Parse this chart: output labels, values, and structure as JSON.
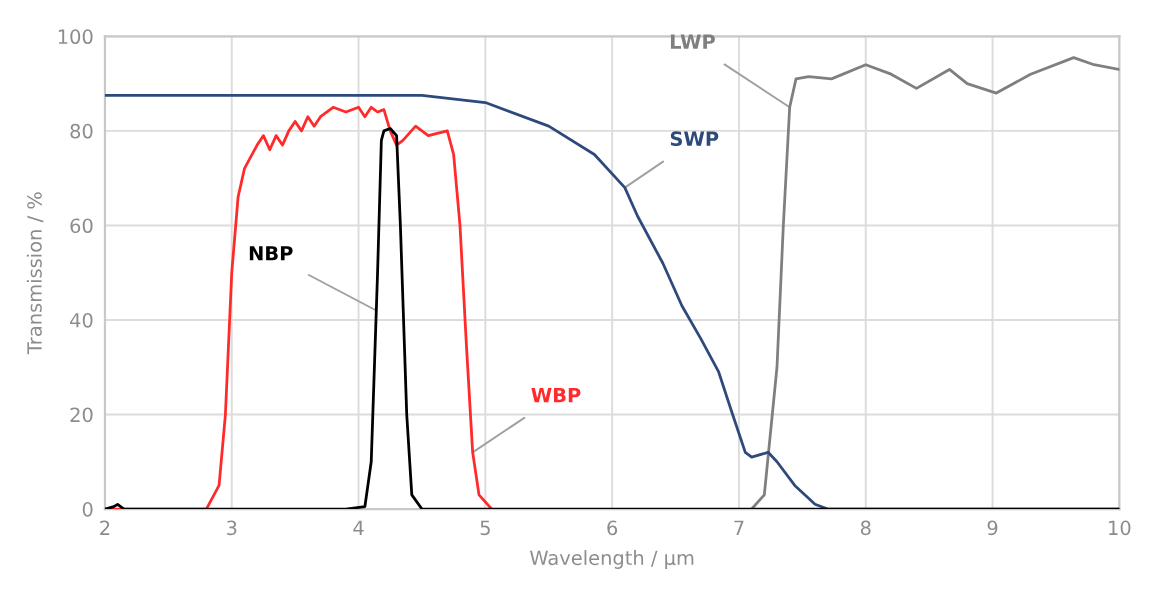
{
  "chart_data": {
    "type": "line",
    "xlabel": "Wavelength / µm",
    "ylabel": "Transmission / %",
    "xlim": [
      2,
      10
    ],
    "ylim": [
      0,
      100
    ],
    "xticks": [
      2,
      3,
      4,
      5,
      6,
      7,
      8,
      9,
      10
    ],
    "yticks": [
      0,
      20,
      40,
      60,
      80,
      100
    ],
    "grid": true,
    "legend": false,
    "marker": "none",
    "line_style": "solid",
    "series": [
      {
        "name": "NBP",
        "color": "#000000",
        "x": [
          2,
          2.07,
          2.1,
          2.15,
          3.9,
          4.05,
          4.1,
          4.15,
          4.18,
          4.2,
          4.25,
          4.3,
          4.33,
          4.38,
          4.42,
          4.5,
          10
        ],
        "values": [
          0,
          0.5,
          1,
          0,
          0,
          0.5,
          10,
          50,
          78,
          80,
          80.5,
          79,
          60,
          20,
          3,
          0,
          0
        ]
      },
      {
        "name": "WBP",
        "color": "#ff2a2a",
        "x": [
          2,
          2.8,
          2.9,
          2.95,
          3.0,
          3.05,
          3.1,
          3.2,
          3.25,
          3.3,
          3.35,
          3.4,
          3.45,
          3.5,
          3.55,
          3.6,
          3.65,
          3.7,
          3.8,
          3.9,
          4.0,
          4.05,
          4.1,
          4.15,
          4.2,
          4.25,
          4.3,
          4.35,
          4.45,
          4.55,
          4.7,
          4.75,
          4.8,
          4.85,
          4.9,
          4.95,
          5.05
        ],
        "values": [
          0,
          0,
          5,
          20,
          50,
          66,
          72,
          77,
          79,
          76,
          79,
          77,
          80,
          82,
          80,
          83,
          81,
          83,
          85,
          84,
          85,
          83,
          85,
          84,
          84.5,
          80,
          77,
          78,
          81,
          79,
          80,
          75,
          60,
          35,
          12,
          3,
          0
        ]
      },
      {
        "name": "SWP",
        "color": "#2e4a7d",
        "x": [
          2,
          3,
          4,
          4.5,
          5.0,
          5.5,
          5.86,
          6.1,
          6.2,
          6.4,
          6.55,
          6.7,
          6.84,
          6.95,
          7.05,
          7.1,
          7.23,
          7.3,
          7.44,
          7.6,
          7.7,
          10
        ],
        "values": [
          87.5,
          87.5,
          87.5,
          87.5,
          86,
          81,
          75,
          68,
          62,
          52,
          43,
          36,
          29,
          20,
          12,
          11,
          12,
          10,
          5,
          1,
          0,
          0
        ]
      },
      {
        "name": "LWP",
        "color": "#7f7f7f",
        "x": [
          7.1,
          7.2,
          7.3,
          7.35,
          7.4,
          7.45,
          7.55,
          7.73,
          8.0,
          8.2,
          8.4,
          8.66,
          8.8,
          9.03,
          9.3,
          9.64,
          9.8,
          10
        ],
        "values": [
          0,
          3,
          30,
          60,
          85,
          91,
          91.5,
          91,
          94,
          92,
          89,
          93,
          90,
          88,
          92,
          95.5,
          94,
          93
        ]
      }
    ]
  }
}
